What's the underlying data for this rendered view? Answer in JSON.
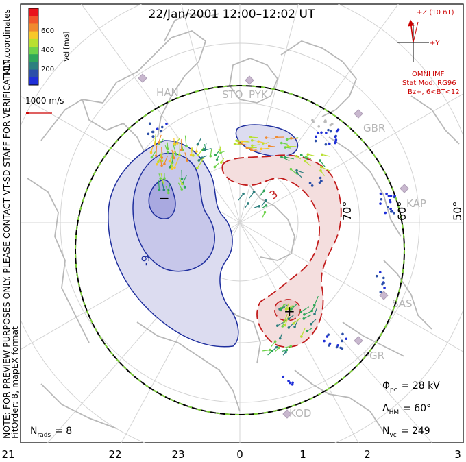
{
  "title": "22/Jan/2001 12:00–12:02 UT",
  "coord_system": "MLT coordinates",
  "preview_note": "NOTE: FOR PREVIEW PURPOSES ONLY. PLEASE CONTACT VT-SD STAFF FOR VERIFICATION.",
  "fit_note": "FitOrder: 8, mapEX format",
  "colorbar": {
    "label": "Vel [m/s]",
    "ticks": [
      "600",
      "400",
      "200"
    ],
    "colors": [
      "#e8131b",
      "#f0562a",
      "#f08a2e",
      "#f8c82a",
      "#b8e030",
      "#6ed24a",
      "#2fa65a",
      "#2c7f7e",
      "#2b4fa8",
      "#1f2fd8"
    ]
  },
  "vector_scale": "1000 m/s",
  "imf": {
    "z_label": "+Z (10 nT)",
    "y_label": "+Y",
    "source": "OMNI IMF",
    "model": "Stat Mod: RG96",
    "condition": "Bz+, 6<BT<12",
    "color": "#cc0000"
  },
  "stations": [
    "HAN",
    "STO",
    "PYK",
    "GBR",
    "KAP",
    "SAS",
    "PGR",
    "KOD"
  ],
  "lat_labels": [
    "70°",
    "60°",
    "50°"
  ],
  "contour_labels": [
    "-9",
    "3"
  ],
  "extrema": [
    "−",
    "+"
  ],
  "stats": {
    "phi_pc": {
      "symbol": "Φ",
      "sub": "pc",
      "value": "= 28 kV"
    },
    "lambda_hm": {
      "symbol": "Λ",
      "sub": "HM",
      "value": "= 60°"
    },
    "n_vc": {
      "symbol": "N",
      "sub": "vc",
      "value": "= 249"
    },
    "n_rads": {
      "symbol": "N",
      "sub": "rads",
      "value": "= 8"
    }
  },
  "mlt_axis": [
    "21",
    "22",
    "23",
    "0",
    "1",
    "2",
    "3"
  ]
}
